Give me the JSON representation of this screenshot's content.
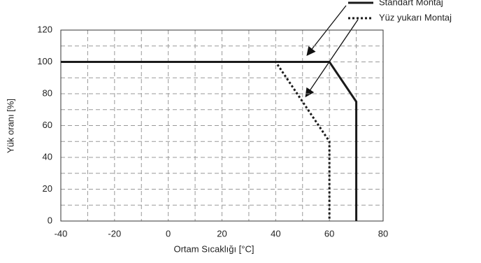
{
  "chart_data": {
    "type": "line",
    "x_label": "Ortam Sıcaklığı [°C]",
    "y_label": "Yük oranı [%]",
    "xlim": [
      -40,
      80
    ],
    "ylim": [
      0,
      120
    ],
    "xticks": [
      -40,
      -20,
      0,
      20,
      40,
      60,
      80
    ],
    "yticks": [
      0,
      20,
      40,
      60,
      80,
      100,
      120
    ],
    "minor_xticks": [
      -30,
      -10,
      10,
      30,
      50,
      70
    ],
    "minor_yticks": [
      10,
      30,
      50,
      70,
      90,
      110
    ],
    "grid": true,
    "series": [
      {
        "name": "Standart Montaj",
        "color": "#1a1a1a",
        "style": "solid",
        "x": [
          -40,
          60,
          70,
          70
        ],
        "values": [
          100,
          100,
          75,
          0
        ]
      },
      {
        "name": "Yüz yukarı Montaj",
        "color": "#1a1a1a",
        "style": "dotted",
        "x": [
          -40,
          40,
          60,
          60
        ],
        "values": [
          100,
          100,
          50,
          0
        ]
      }
    ]
  }
}
